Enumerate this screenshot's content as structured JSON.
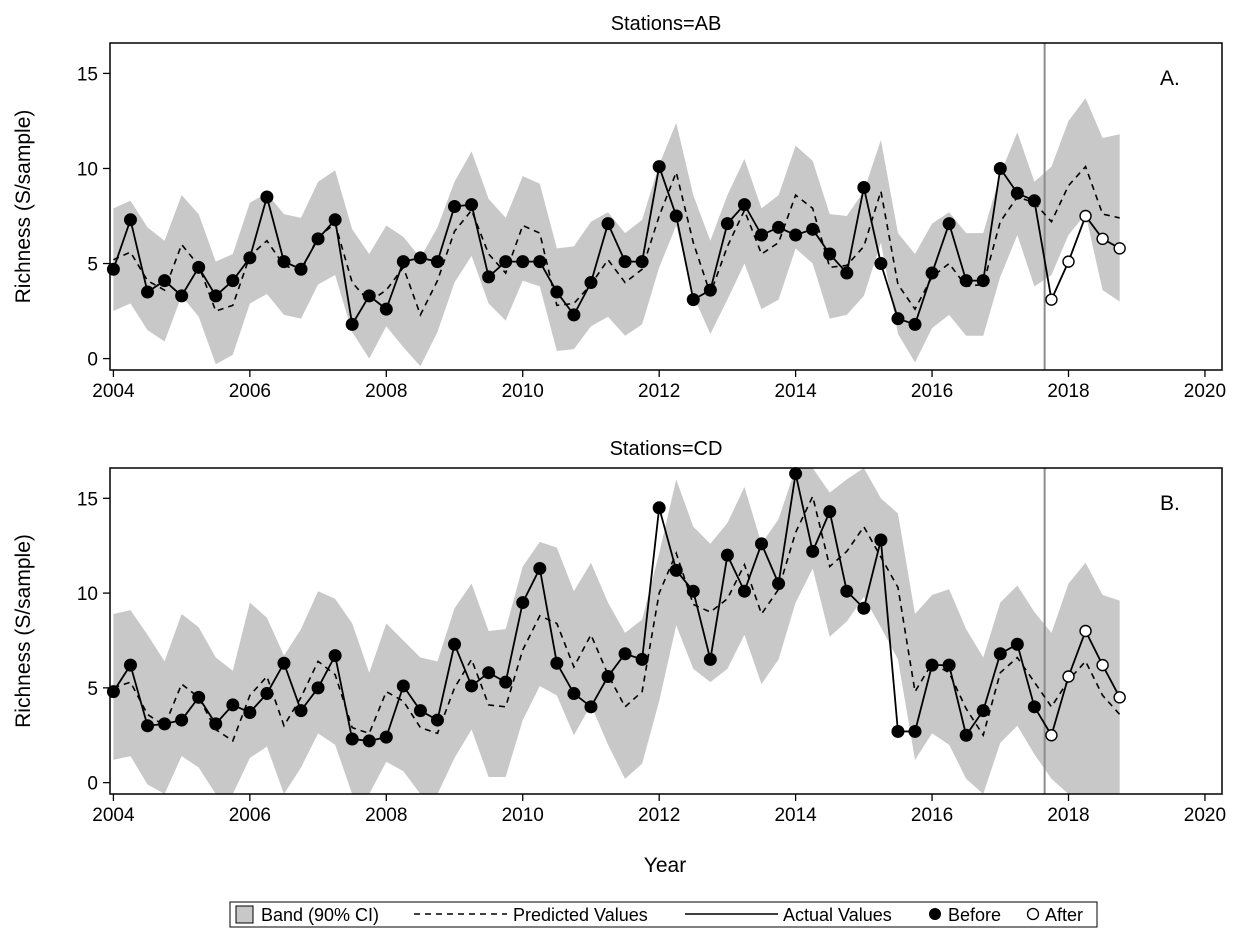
{
  "chart_data": [
    {
      "type": "line",
      "title": "Stations=AB",
      "panel_label": "A.",
      "xlabel": "",
      "ylabel": "Richness (S/sample)",
      "xlim": [
        2003.95,
        2020.25
      ],
      "ylim": [
        -0.6,
        16.6
      ],
      "xticks": [
        2004,
        2006,
        2008,
        2010,
        2012,
        2014,
        2016,
        2018,
        2020
      ],
      "yticks": [
        0,
        5,
        10,
        15
      ],
      "intervention_x": 2017.65,
      "x": [
        2004.0,
        2004.25,
        2004.5,
        2004.75,
        2005.0,
        2005.25,
        2005.5,
        2005.75,
        2006.0,
        2006.25,
        2006.5,
        2006.75,
        2007.0,
        2007.25,
        2007.5,
        2007.75,
        2008.0,
        2008.25,
        2008.5,
        2008.75,
        2009.0,
        2009.25,
        2009.5,
        2009.75,
        2010.0,
        2010.25,
        2010.5,
        2010.75,
        2011.0,
        2011.25,
        2011.5,
        2011.75,
        2012.0,
        2012.25,
        2012.5,
        2012.75,
        2013.0,
        2013.25,
        2013.5,
        2013.75,
        2014.0,
        2014.25,
        2014.5,
        2014.75,
        2015.0,
        2015.25,
        2015.5,
        2015.75,
        2016.0,
        2016.25,
        2016.5,
        2016.75,
        2017.0,
        2017.25,
        2017.5,
        2017.75,
        2018.0,
        2018.25,
        2018.5,
        2018.75
      ],
      "series": [
        {
          "name": "Actual Values",
          "values": [
            4.7,
            7.3,
            3.5,
            4.1,
            3.3,
            4.8,
            3.3,
            4.1,
            5.3,
            8.5,
            5.1,
            4.7,
            6.3,
            7.3,
            1.8,
            3.3,
            2.6,
            5.1,
            5.3,
            5.1,
            8.0,
            8.1,
            4.3,
            5.1,
            5.1,
            5.1,
            3.5,
            2.3,
            4.0,
            7.1,
            5.1,
            5.1,
            10.1,
            7.5,
            3.1,
            3.6,
            7.1,
            8.1,
            6.5,
            6.9,
            6.5,
            6.8,
            5.5,
            4.5,
            9.0,
            5.0,
            2.1,
            1.8,
            4.5,
            7.1,
            4.1,
            4.1,
            10.0,
            8.7,
            8.3,
            3.1,
            5.1,
            7.5,
            6.3,
            5.8
          ]
        },
        {
          "name": "Predicted Values",
          "values": [
            5.2,
            5.6,
            4.1,
            3.6,
            6.0,
            4.9,
            2.5,
            2.8,
            5.4,
            6.2,
            4.9,
            4.6,
            6.4,
            7.1,
            4.0,
            3.0,
            3.6,
            4.8,
            2.3,
            4.1,
            6.7,
            7.8,
            5.5,
            4.5,
            7.0,
            6.6,
            2.8,
            2.9,
            3.9,
            5.2,
            4.0,
            4.7,
            7.5,
            9.8,
            6.1,
            3.4,
            5.9,
            7.8,
            5.5,
            6.1,
            8.6,
            7.9,
            4.8,
            4.9,
            5.9,
            8.8,
            3.9,
            2.6,
            4.3,
            5.0,
            3.8,
            3.9,
            7.2,
            8.5,
            8.2,
            7.2,
            9.1,
            10.1,
            7.6,
            7.4
          ]
        },
        {
          "name": "Band (90% CI) upper",
          "values": [
            7.9,
            8.3,
            6.9,
            6.2,
            8.6,
            7.6,
            5.1,
            5.5,
            8.2,
            8.7,
            7.6,
            7.4,
            9.3,
            9.9,
            6.8,
            5.5,
            7.0,
            6.4,
            5.3,
            6.9,
            9.3,
            10.9,
            8.4,
            7.4,
            9.6,
            9.2,
            5.8,
            5.9,
            7.2,
            7.7,
            6.6,
            7.3,
            10.2,
            12.4,
            8.6,
            6.2,
            8.6,
            10.5,
            7.9,
            8.6,
            11.2,
            10.4,
            7.6,
            7.5,
            8.8,
            11.5,
            6.6,
            5.5,
            7.1,
            7.7,
            6.6,
            6.6,
            9.7,
            11.9,
            9.3,
            10.1,
            12.5,
            13.7,
            11.6,
            11.8
          ]
        },
        {
          "name": "Band (90% CI) lower",
          "values": [
            2.5,
            2.9,
            1.5,
            0.9,
            3.3,
            2.2,
            -0.3,
            0.2,
            2.9,
            3.4,
            2.3,
            2.1,
            3.9,
            4.4,
            1.4,
            0.0,
            1.7,
            0.6,
            -0.4,
            1.4,
            4.0,
            5.4,
            2.9,
            2.0,
            4.1,
            3.8,
            0.4,
            0.5,
            1.7,
            2.2,
            1.2,
            1.8,
            4.8,
            7.0,
            3.3,
            1.3,
            3.1,
            5.0,
            2.6,
            3.1,
            5.8,
            5.0,
            2.1,
            2.3,
            3.3,
            6.1,
            1.3,
            -0.2,
            1.6,
            2.3,
            1.2,
            1.2,
            4.3,
            6.5,
            3.8,
            4.4,
            6.5,
            7.6,
            3.6,
            3.0
          ]
        }
      ]
    },
    {
      "type": "line",
      "title": "Stations=CD",
      "panel_label": "B.",
      "xlabel": "Year",
      "ylabel": "Richness (S/sample)",
      "xlim": [
        2003.95,
        2020.25
      ],
      "ylim": [
        -0.6,
        16.6
      ],
      "xticks": [
        2004,
        2006,
        2008,
        2010,
        2012,
        2014,
        2016,
        2018,
        2020
      ],
      "yticks": [
        0,
        5,
        10,
        15
      ],
      "intervention_x": 2017.65,
      "x": [
        2004.0,
        2004.25,
        2004.5,
        2004.75,
        2005.0,
        2005.25,
        2005.5,
        2005.75,
        2006.0,
        2006.25,
        2006.5,
        2006.75,
        2007.0,
        2007.25,
        2007.5,
        2007.75,
        2008.0,
        2008.25,
        2008.5,
        2008.75,
        2009.0,
        2009.25,
        2009.5,
        2009.75,
        2010.0,
        2010.25,
        2010.5,
        2010.75,
        2011.0,
        2011.25,
        2011.5,
        2011.75,
        2012.0,
        2012.25,
        2012.5,
        2012.75,
        2013.0,
        2013.25,
        2013.5,
        2013.75,
        2014.0,
        2014.25,
        2014.5,
        2014.75,
        2015.0,
        2015.25,
        2015.5,
        2015.75,
        2016.0,
        2016.25,
        2016.5,
        2016.75,
        2017.0,
        2017.25,
        2017.5,
        2017.75,
        2018.0,
        2018.25,
        2018.5,
        2018.75
      ],
      "series": [
        {
          "name": "Actual Values",
          "values": [
            4.8,
            6.2,
            3.0,
            3.1,
            3.3,
            4.5,
            3.1,
            4.1,
            3.7,
            4.7,
            6.3,
            3.8,
            5.0,
            6.7,
            2.3,
            2.2,
            2.4,
            5.1,
            3.8,
            3.3,
            7.3,
            5.1,
            5.8,
            5.3,
            9.5,
            11.3,
            6.3,
            4.7,
            4.0,
            5.6,
            6.8,
            6.5,
            14.5,
            11.2,
            10.1,
            6.5,
            12.0,
            10.1,
            12.6,
            10.5,
            16.3,
            12.2,
            14.3,
            10.1,
            9.2,
            12.8,
            2.7,
            2.7,
            6.2,
            6.2,
            2.5,
            3.8,
            6.8,
            7.3,
            4.0,
            2.5,
            5.6,
            8.0,
            6.2,
            4.5
          ]
        },
        {
          "name": "Predicted Values",
          "values": [
            5.0,
            5.3,
            3.6,
            3.0,
            5.2,
            4.5,
            2.8,
            2.2,
            4.6,
            5.6,
            3.0,
            4.5,
            6.4,
            5.7,
            2.9,
            2.6,
            4.8,
            4.3,
            2.9,
            2.6,
            5.0,
            6.5,
            4.1,
            4.0,
            7.0,
            8.8,
            8.4,
            6.1,
            7.8,
            5.7,
            4.0,
            4.8,
            10.0,
            12.1,
            9.4,
            9.0,
            9.7,
            11.5,
            8.9,
            10.2,
            13.2,
            15.1,
            11.4,
            12.2,
            13.5,
            11.9,
            10.3,
            4.8,
            6.3,
            5.8,
            3.9,
            2.5,
            5.8,
            6.6,
            5.3,
            4.0,
            5.4,
            6.4,
            4.6,
            3.6
          ]
        },
        {
          "name": "Band (90% CI) upper",
          "values": [
            8.9,
            9.1,
            7.8,
            6.4,
            8.9,
            8.2,
            6.6,
            5.9,
            9.5,
            8.7,
            6.7,
            8.1,
            10.1,
            9.7,
            8.4,
            5.8,
            8.4,
            7.5,
            6.6,
            6.4,
            9.2,
            10.5,
            8.0,
            8.1,
            11.4,
            12.7,
            12.4,
            10.1,
            11.6,
            9.5,
            7.9,
            8.6,
            12.1,
            16.0,
            13.5,
            12.6,
            13.7,
            15.6,
            12.6,
            13.9,
            16.6,
            16.6,
            15.3,
            16.0,
            16.6,
            15.0,
            14.2,
            8.9,
            9.9,
            10.2,
            8.1,
            6.6,
            9.5,
            10.4,
            9.0,
            7.9,
            10.5,
            11.6,
            9.9,
            9.6
          ]
        },
        {
          "name": "Band (90% CI) lower",
          "values": [
            1.2,
            1.4,
            -0.1,
            -0.6,
            1.4,
            0.8,
            -0.6,
            -0.6,
            1.3,
            1.9,
            -0.6,
            0.8,
            2.6,
            2.0,
            -0.6,
            -0.6,
            1.1,
            0.6,
            -0.6,
            -0.6,
            1.3,
            2.8,
            0.3,
            0.3,
            3.3,
            5.1,
            4.6,
            2.5,
            4.1,
            2.0,
            0.2,
            1.0,
            4.3,
            8.3,
            6.0,
            5.3,
            6.0,
            7.8,
            5.2,
            6.5,
            9.5,
            11.3,
            7.7,
            8.5,
            9.8,
            8.2,
            6.5,
            1.2,
            2.6,
            2.0,
            0.2,
            -0.6,
            2.1,
            3.0,
            1.5,
            0.2,
            -0.6,
            -0.6,
            -0.6,
            -0.6
          ]
        }
      ]
    }
  ],
  "legend": {
    "band_label": "Band (90% CI)",
    "predicted_label": "Predicted Values",
    "actual_label": "Actual Values",
    "before_label": "Before",
    "after_label": "After"
  },
  "colors": {
    "band": "#c8c8c8",
    "line": "#000000",
    "intervention_line": "#8c8c8c"
  }
}
